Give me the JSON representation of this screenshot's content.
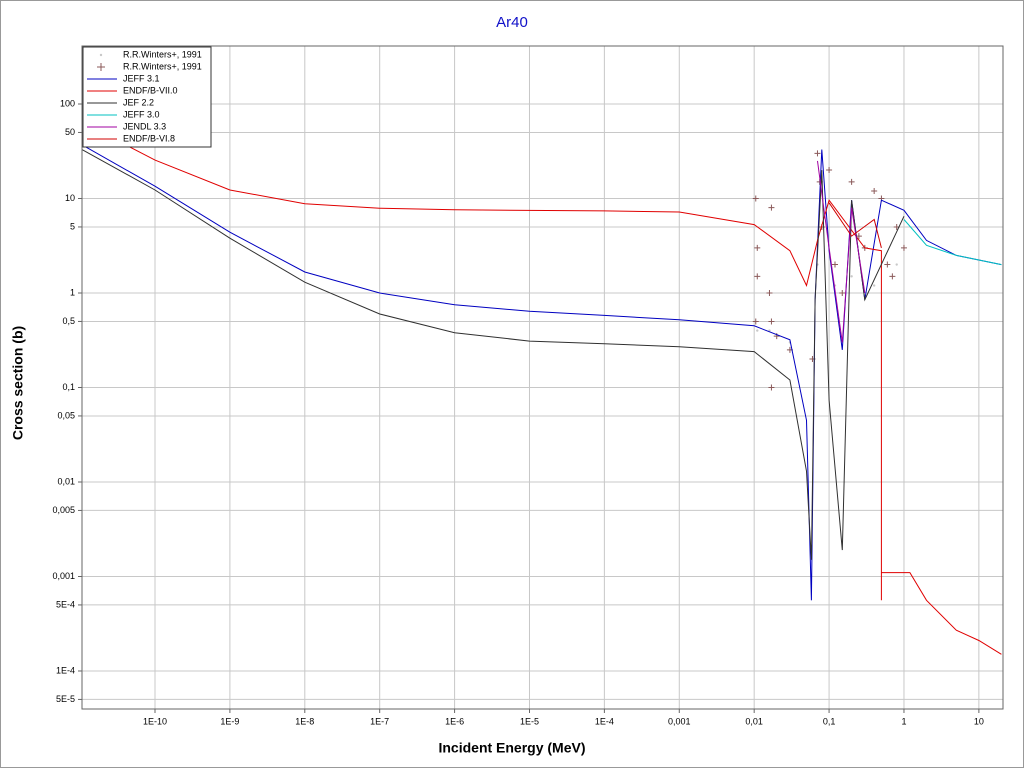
{
  "chart_data": {
    "type": "line",
    "title": "Ar40",
    "x_label": "Incident Energy (MeV)",
    "y_label": "Cross section (b)",
    "xscale": "log",
    "yscale": "log",
    "grid": true,
    "legend": "top-left",
    "xlim": [
      1.06e-11,
      21
    ],
    "ylim": [
      3.96e-05,
      411
    ],
    "xticks": [
      {
        "value": 1e-10,
        "label": "1E-10"
      },
      {
        "value": 1e-09,
        "label": "1E-9"
      },
      {
        "value": 1e-08,
        "label": "1E-8"
      },
      {
        "value": 1e-07,
        "label": "1E-7"
      },
      {
        "value": 1e-06,
        "label": "1E-6"
      },
      {
        "value": 1e-05,
        "label": "1E-5"
      },
      {
        "value": 0.0001,
        "label": "1E-4"
      },
      {
        "value": 0.001,
        "label": "0,001"
      },
      {
        "value": 0.01,
        "label": "0,01"
      },
      {
        "value": 0.1,
        "label": "0,1"
      },
      1,
      10
    ],
    "yticks": [
      100,
      50,
      10,
      5,
      1,
      {
        "value": 0.5,
        "label": "0,5"
      },
      {
        "value": 0.1,
        "label": "0,1"
      },
      {
        "value": 0.05,
        "label": "0,05"
      },
      {
        "value": 0.01,
        "label": "0,01"
      },
      {
        "value": 0.005,
        "label": "0,005"
      },
      {
        "value": 0.001,
        "label": "0,001"
      },
      {
        "value": 0.0005,
        "label": "5E-4"
      },
      {
        "value": 0.0001,
        "label": "1E-4"
      },
      {
        "value": 5e-05,
        "label": "5E-5"
      }
    ],
    "series": [
      {
        "name": "R.R.Winters+, 1991",
        "color": "#c8c8c8",
        "mode": "markers",
        "marker": "dot",
        "x": [
          0.011,
          0.016,
          0.03,
          0.07,
          0.12,
          0.2,
          0.4,
          0.8
        ],
        "values": [
          0.4,
          0.4,
          0.3,
          2,
          1.2,
          1.5,
          1.2,
          2
        ]
      },
      {
        "name": "R.R.Winters+, 1991",
        "color": "#8b5a5a",
        "mode": "markers",
        "marker": "plus",
        "x": [
          0.0105,
          0.0105,
          0.011,
          0.011,
          0.016,
          0.017,
          0.017,
          0.017,
          0.02,
          0.03,
          0.06,
          0.07,
          0.075,
          0.08,
          0.1,
          0.12,
          0.15,
          0.2,
          0.25,
          0.3,
          0.4,
          0.5,
          0.6,
          0.7,
          0.8,
          1
        ],
        "values": [
          10,
          0.5,
          3,
          1.5,
          1,
          8,
          0.1,
          0.5,
          0.35,
          0.25,
          0.2,
          30,
          15,
          5,
          20,
          2,
          1,
          15,
          4,
          3,
          12,
          10,
          2,
          1.5,
          5,
          3
        ]
      },
      {
        "name": "JEFF 3.1",
        "color": "#0000c0",
        "mode": "line",
        "x": [
          1.06e-11,
          1e-10,
          1e-09,
          1e-08,
          1e-07,
          1e-06,
          1e-05,
          0.0001,
          0.001,
          0.01,
          0.03,
          0.05,
          0.058,
          0.065,
          0.08,
          0.1,
          0.15,
          0.2,
          0.3,
          0.5,
          1,
          2,
          5,
          20
        ],
        "values": [
          37,
          13.5,
          4.4,
          1.67,
          1,
          0.75,
          0.64,
          0.58,
          0.52,
          0.45,
          0.32,
          0.045,
          0.00056,
          0.85,
          33,
          2.8,
          0.25,
          9.6,
          0.85,
          9.6,
          7.5,
          3.6,
          2.5,
          2
        ]
      },
      {
        "name": "ENDF/B-VII.0",
        "color": "#e00000",
        "mode": "line",
        "x": [
          1.06e-11,
          1e-10,
          1e-09,
          1e-08,
          1e-07,
          1e-06,
          0.0001,
          0.001,
          0.01,
          0.03,
          0.05,
          0.07,
          0.1,
          0.3,
          0.5,
          0.5,
          0.5,
          1.2,
          2,
          5,
          10,
          20
        ],
        "values": [
          64,
          25.5,
          12.3,
          8.8,
          7.9,
          7.6,
          7.4,
          7.2,
          5.3,
          2.8,
          1.2,
          3.6,
          9.6,
          3,
          2.8,
          0.00056,
          0.0011,
          0.0011,
          0.00056,
          0.00027,
          0.00021,
          0.00015
        ]
      },
      {
        "name": "JEF 2.2",
        "color": "#303030",
        "mode": "line",
        "x": [
          1.06e-11,
          1e-10,
          1e-09,
          1e-08,
          1e-07,
          1e-06,
          1e-05,
          0.0001,
          0.001,
          0.01,
          0.03,
          0.05,
          0.058,
          0.065,
          0.08,
          0.1,
          0.15,
          0.2,
          0.3,
          1
        ],
        "values": [
          33,
          12.3,
          3.8,
          1.3,
          0.6,
          0.38,
          0.31,
          0.29,
          0.27,
          0.24,
          0.12,
          0.013,
          0.0015,
          0.85,
          20,
          0.073,
          0.0019,
          9.6,
          0.85,
          6.5
        ]
      },
      {
        "name": "JEFF 3.0",
        "color": "#00c0c0",
        "mode": "line",
        "x": [
          1,
          2,
          5,
          20
        ],
        "values": [
          6,
          3.2,
          2.5,
          2
        ]
      },
      {
        "name": "JENDL 3.3",
        "color": "#a000a0",
        "mode": "line",
        "x": [
          0.07,
          0.1,
          0.15,
          0.2,
          0.3
        ],
        "values": [
          25,
          3,
          0.3,
          8,
          1
        ]
      },
      {
        "name": "ENDF/B-VI.8",
        "color": "#d00000",
        "mode": "line",
        "x": [
          0.1,
          0.2,
          0.4,
          0.5
        ],
        "values": [
          9,
          4,
          6,
          3
        ]
      }
    ]
  }
}
